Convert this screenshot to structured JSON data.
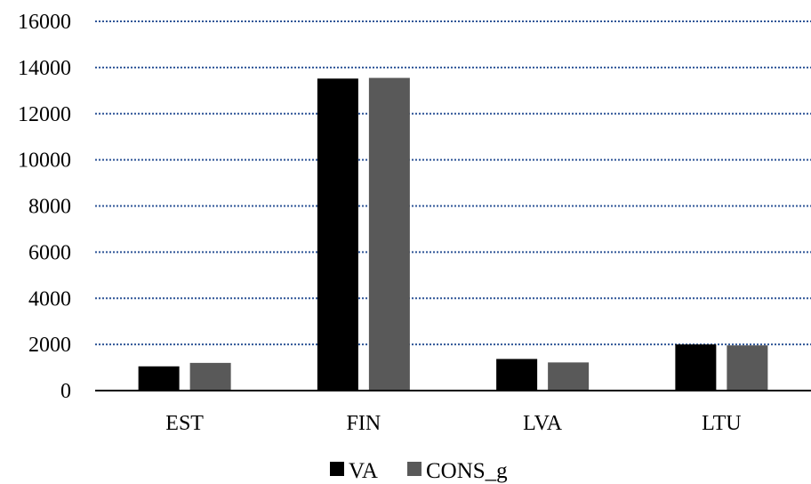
{
  "chart_data": {
    "type": "bar",
    "title": "",
    "xlabel": "",
    "ylabel": "",
    "categories": [
      "EST",
      "FIN",
      "LVA",
      "LTU"
    ],
    "series": [
      {
        "name": "VA",
        "color": "#000000",
        "values": [
          1050,
          13520,
          1370,
          2000
        ]
      },
      {
        "name": "CONS_g",
        "color": "#595959",
        "values": [
          1200,
          13550,
          1220,
          1960
        ]
      }
    ],
    "ylim": [
      0,
      16000
    ],
    "yticks": [
      0,
      2000,
      4000,
      6000,
      8000,
      10000,
      12000,
      14000,
      16000
    ],
    "ytick_labels": [
      "0",
      "2000",
      "4000",
      "6000",
      "8000",
      "10000",
      "12000",
      "14000",
      "16000"
    ],
    "grid": "horizontal dotted",
    "gridline_color": "#2F5597",
    "legend": "bottom-center"
  }
}
